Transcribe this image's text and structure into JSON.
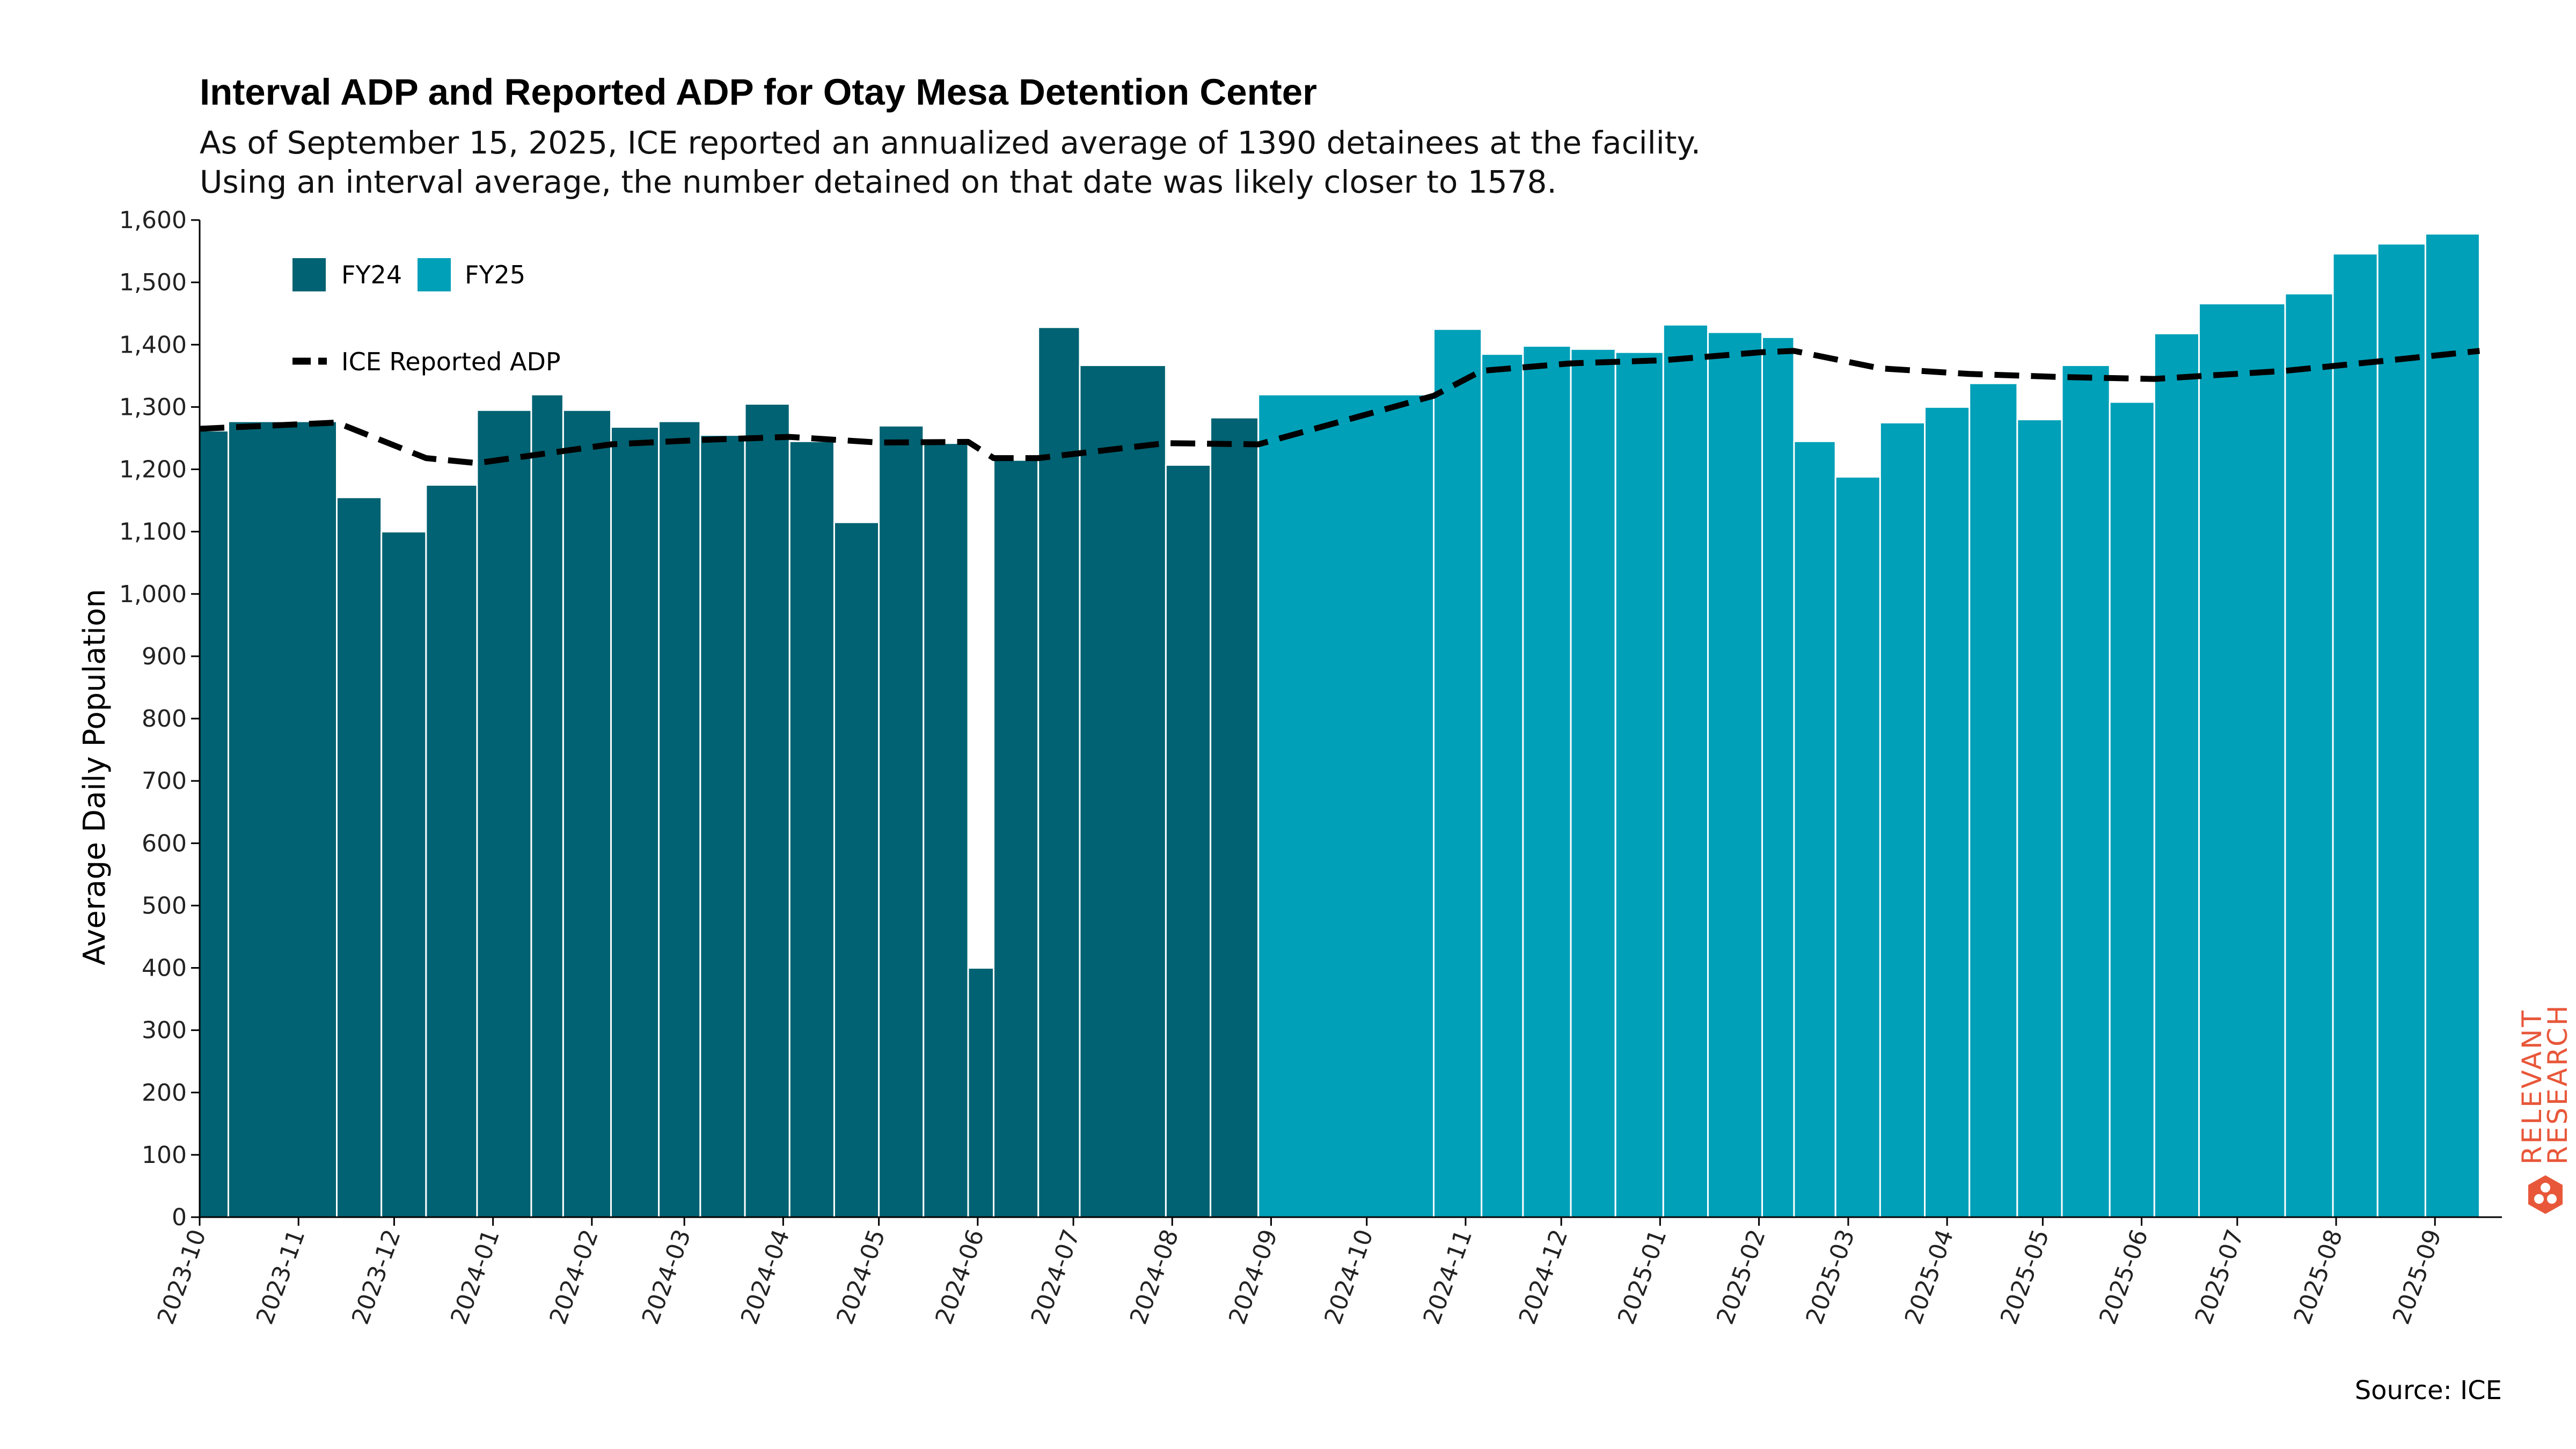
{
  "title": "Interval ADP and Reported ADP for Otay Mesa Detention Center",
  "subtitle_lines": [
    "As of September 15, 2025, ICE reported an annualized average of 1390 detainees at the facility.",
    "Using an interval average, the number detained on that date was likely closer to 1578."
  ],
  "source": "Source: ICE",
  "logo": {
    "line1": "RELEVANT",
    "line2": "RESEARCH",
    "color": "#e8573a"
  },
  "colors": {
    "FY24": "#006272",
    "FY25": "#00a0b8",
    "reported_line": "#000000"
  },
  "chart_data": {
    "type": "bar",
    "title": "Interval ADP and Reported ADP for Otay Mesa Detention Center",
    "xlabel": "",
    "ylabel": "Average Daily Population",
    "ylim": [
      0,
      1600
    ],
    "yticks": [
      0,
      100,
      200,
      300,
      400,
      500,
      600,
      700,
      800,
      900,
      1000,
      1100,
      1200,
      1300,
      1400,
      1500,
      1600
    ],
    "ytick_labels": [
      "0",
      "100",
      "200",
      "300",
      "400",
      "500",
      "600",
      "700",
      "800",
      "900",
      "1,000",
      "1,100",
      "1,200",
      "1,300",
      "1,400",
      "1,500",
      "1,600"
    ],
    "x_axis": {
      "type": "date",
      "start": "2023-10-01",
      "end": "2025-09-22"
    },
    "xticks": [
      "2023-10",
      "2023-11",
      "2023-12",
      "2024-01",
      "2024-02",
      "2024-03",
      "2024-04",
      "2024-05",
      "2024-06",
      "2024-07",
      "2024-08",
      "2024-09",
      "2024-10",
      "2024-11",
      "2024-12",
      "2025-01",
      "2025-02",
      "2025-03",
      "2025-04",
      "2025-05",
      "2025-06",
      "2025-07",
      "2025-08",
      "2025-09"
    ],
    "grid": false,
    "legend": {
      "placement": "top-left",
      "entries": [
        "FY24",
        "FY25",
        "ICE Reported ADP"
      ]
    },
    "series": [
      {
        "name": "FY24",
        "type": "bar",
        "intervals": [
          {
            "start": "2023-10-01",
            "end": "2023-10-10",
            "value": 1262
          },
          {
            "start": "2023-10-10",
            "end": "2023-11-13",
            "value": 1277
          },
          {
            "start": "2023-11-13",
            "end": "2023-11-27",
            "value": 1155
          },
          {
            "start": "2023-11-27",
            "end": "2023-12-11",
            "value": 1100
          },
          {
            "start": "2023-12-11",
            "end": "2023-12-27",
            "value": 1175
          },
          {
            "start": "2023-12-27",
            "end": "2024-01-13",
            "value": 1295
          },
          {
            "start": "2024-01-13",
            "end": "2024-01-23",
            "value": 1320
          },
          {
            "start": "2024-01-23",
            "end": "2024-02-07",
            "value": 1295
          },
          {
            "start": "2024-02-07",
            "end": "2024-02-22",
            "value": 1268
          },
          {
            "start": "2024-02-22",
            "end": "2024-03-06",
            "value": 1277
          },
          {
            "start": "2024-03-06",
            "end": "2024-03-20",
            "value": 1255
          },
          {
            "start": "2024-03-20",
            "end": "2024-04-03",
            "value": 1305
          },
          {
            "start": "2024-04-03",
            "end": "2024-04-17",
            "value": 1245
          },
          {
            "start": "2024-04-17",
            "end": "2024-05-01",
            "value": 1115
          },
          {
            "start": "2024-05-01",
            "end": "2024-05-15",
            "value": 1270
          },
          {
            "start": "2024-05-15",
            "end": "2024-05-29",
            "value": 1242
          },
          {
            "start": "2024-05-29",
            "end": "2024-06-06",
            "value": 400
          },
          {
            "start": "2024-06-06",
            "end": "2024-06-20",
            "value": 1215
          },
          {
            "start": "2024-06-20",
            "end": "2024-07-03",
            "value": 1428
          },
          {
            "start": "2024-07-03",
            "end": "2024-07-30",
            "value": 1367
          },
          {
            "start": "2024-07-30",
            "end": "2024-08-13",
            "value": 1207
          },
          {
            "start": "2024-08-13",
            "end": "2024-08-28",
            "value": 1283
          }
        ]
      },
      {
        "name": "FY25",
        "type": "bar",
        "intervals": [
          {
            "start": "2024-08-28",
            "end": "2024-10-22",
            "value": 1320
          },
          {
            "start": "2024-10-22",
            "end": "2024-11-06",
            "value": 1425
          },
          {
            "start": "2024-11-06",
            "end": "2024-11-19",
            "value": 1385
          },
          {
            "start": "2024-11-19",
            "end": "2024-12-04",
            "value": 1398
          },
          {
            "start": "2024-12-04",
            "end": "2024-12-18",
            "value": 1393
          },
          {
            "start": "2024-12-18",
            "end": "2025-01-02",
            "value": 1388
          },
          {
            "start": "2025-01-02",
            "end": "2025-01-16",
            "value": 1432
          },
          {
            "start": "2025-01-16",
            "end": "2025-02-02",
            "value": 1420
          },
          {
            "start": "2025-02-02",
            "end": "2025-02-12",
            "value": 1412
          },
          {
            "start": "2025-02-12",
            "end": "2025-02-25",
            "value": 1245
          },
          {
            "start": "2025-02-25",
            "end": "2025-03-11",
            "value": 1188
          },
          {
            "start": "2025-03-11",
            "end": "2025-03-25",
            "value": 1275
          },
          {
            "start": "2025-03-25",
            "end": "2025-04-08",
            "value": 1300
          },
          {
            "start": "2025-04-08",
            "end": "2025-04-23",
            "value": 1338
          },
          {
            "start": "2025-04-23",
            "end": "2025-05-07",
            "value": 1280
          },
          {
            "start": "2025-05-07",
            "end": "2025-05-22",
            "value": 1367
          },
          {
            "start": "2025-05-22",
            "end": "2025-06-05",
            "value": 1308
          },
          {
            "start": "2025-06-05",
            "end": "2025-06-19",
            "value": 1418
          },
          {
            "start": "2025-06-19",
            "end": "2025-07-16",
            "value": 1466
          },
          {
            "start": "2025-07-16",
            "end": "2025-07-31",
            "value": 1482
          },
          {
            "start": "2025-07-31",
            "end": "2025-08-14",
            "value": 1546
          },
          {
            "start": "2025-08-14",
            "end": "2025-08-29",
            "value": 1562
          },
          {
            "start": "2025-08-29",
            "end": "2025-09-15",
            "value": 1578
          }
        ]
      },
      {
        "name": "ICE Reported ADP",
        "type": "line",
        "style": "dashed",
        "points": [
          {
            "x": "2023-10-01",
            "y": 1265
          },
          {
            "x": "2023-11-13",
            "y": 1275
          },
          {
            "x": "2023-12-11",
            "y": 1218
          },
          {
            "x": "2023-12-27",
            "y": 1210
          },
          {
            "x": "2024-02-07",
            "y": 1240
          },
          {
            "x": "2024-03-06",
            "y": 1247
          },
          {
            "x": "2024-04-03",
            "y": 1252
          },
          {
            "x": "2024-05-01",
            "y": 1243
          },
          {
            "x": "2024-05-29",
            "y": 1244
          },
          {
            "x": "2024-06-06",
            "y": 1218
          },
          {
            "x": "2024-06-20",
            "y": 1218
          },
          {
            "x": "2024-07-30",
            "y": 1242
          },
          {
            "x": "2024-08-28",
            "y": 1240
          },
          {
            "x": "2024-10-22",
            "y": 1318
          },
          {
            "x": "2024-11-06",
            "y": 1358
          },
          {
            "x": "2024-12-04",
            "y": 1370
          },
          {
            "x": "2025-01-02",
            "y": 1375
          },
          {
            "x": "2025-02-02",
            "y": 1388
          },
          {
            "x": "2025-02-12",
            "y": 1390
          },
          {
            "x": "2025-03-11",
            "y": 1362
          },
          {
            "x": "2025-04-08",
            "y": 1353
          },
          {
            "x": "2025-05-07",
            "y": 1348
          },
          {
            "x": "2025-06-05",
            "y": 1345
          },
          {
            "x": "2025-07-16",
            "y": 1358
          },
          {
            "x": "2025-08-14",
            "y": 1373
          },
          {
            "x": "2025-09-15",
            "y": 1390
          }
        ]
      }
    ]
  }
}
